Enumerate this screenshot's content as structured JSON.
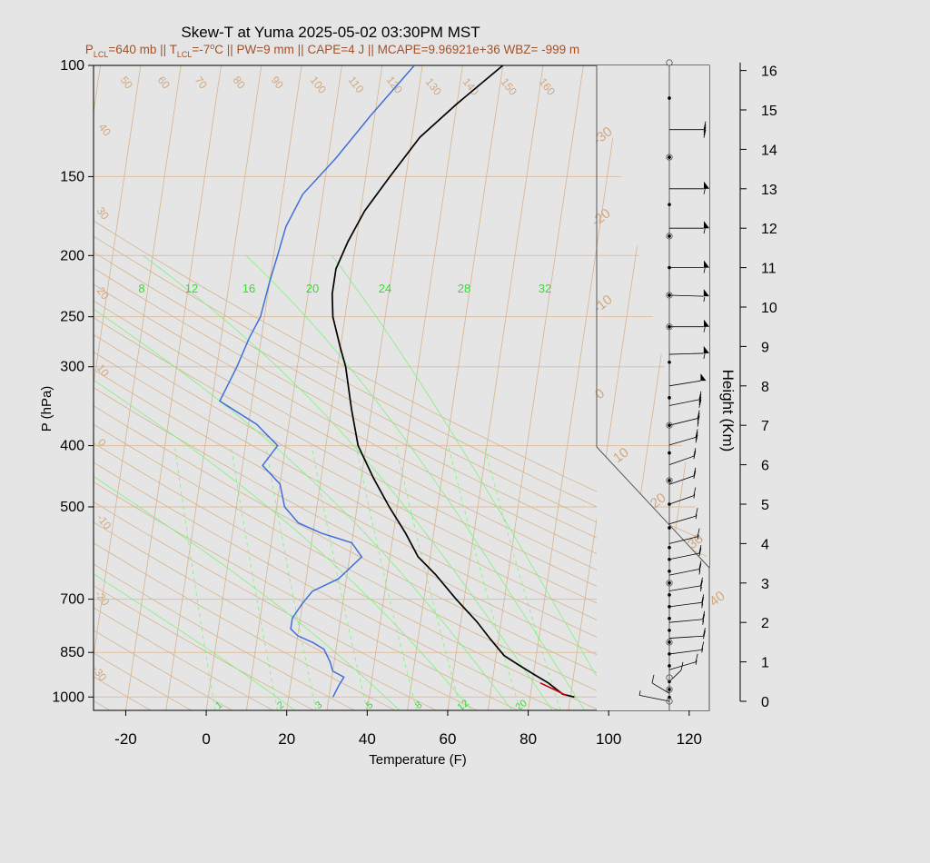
{
  "chart_data": {
    "type": "skew-t",
    "title": "Skew-T at Yuma 2025-05-02 03:30PM MST",
    "subtitle_parts": [
      "P",
      "LCL",
      "=640 mb || T",
      "LCL",
      "=-7",
      "o",
      "C || PW=9 mm || CAPE=4 J || MCAPE=9.96921e+36 WBZ= -999 m"
    ],
    "xlabel": "Temperature (F)",
    "ylabel": "P (hPa)",
    "y2label": "Height (Km)",
    "xlim": [
      -28,
      125
    ],
    "plim": [
      100,
      1050
    ],
    "x_ticks": [
      -20,
      0,
      20,
      40,
      60,
      80,
      100,
      120
    ],
    "p_ticks": [
      100,
      150,
      200,
      250,
      300,
      400,
      500,
      700,
      850,
      1000
    ],
    "height_ticks": [
      0,
      1,
      2,
      3,
      4,
      5,
      6,
      7,
      8,
      9,
      10,
      11,
      12,
      13,
      14,
      15,
      16
    ],
    "isotherm_labels": [
      "-30",
      "-20",
      "-10",
      "0",
      "10",
      "20",
      "30",
      "40",
      "50",
      "60",
      "70",
      "80",
      "90",
      "100",
      "110",
      "120",
      "130",
      "140",
      "150",
      "160"
    ],
    "mixing_ratio_labels_upper": [
      "8",
      "12",
      "16",
      "20",
      "24",
      "28",
      "32"
    ],
    "mixing_ratio_labels_lower": [
      "1",
      "2",
      "3",
      "5",
      "8",
      "12",
      "20"
    ],
    "series": [
      {
        "name": "temperature",
        "color": "#000000",
        "points": [
          [
            91,
            1000
          ],
          [
            88,
            990
          ],
          [
            84,
            950
          ],
          [
            80,
            920
          ],
          [
            76,
            890
          ],
          [
            72,
            860
          ],
          [
            68,
            810
          ],
          [
            64,
            760
          ],
          [
            58,
            700
          ],
          [
            52,
            640
          ],
          [
            47,
            600
          ],
          [
            43,
            550
          ],
          [
            38,
            500
          ],
          [
            33,
            450
          ],
          [
            28,
            400
          ],
          [
            25,
            350
          ],
          [
            22,
            300
          ],
          [
            20,
            280
          ],
          [
            17,
            250
          ],
          [
            16,
            230
          ],
          [
            16,
            210
          ],
          [
            18,
            190
          ],
          [
            21,
            170
          ],
          [
            26,
            150
          ],
          [
            32,
            130
          ],
          [
            40,
            115
          ],
          [
            50,
            100
          ]
        ]
      },
      {
        "name": "dewpoint",
        "color": "#3f6fd8",
        "points": [
          [
            31,
            1000
          ],
          [
            32,
            960
          ],
          [
            33,
            930
          ],
          [
            30,
            910
          ],
          [
            29,
            880
          ],
          [
            27,
            840
          ],
          [
            24,
            820
          ],
          [
            20,
            800
          ],
          [
            18,
            780
          ],
          [
            18,
            750
          ],
          [
            20,
            710
          ],
          [
            22,
            680
          ],
          [
            28,
            650
          ],
          [
            33,
            600
          ],
          [
            30,
            570
          ],
          [
            22,
            550
          ],
          [
            16,
            530
          ],
          [
            12,
            500
          ],
          [
            10,
            460
          ],
          [
            5,
            430
          ],
          [
            8,
            400
          ],
          [
            2,
            370
          ],
          [
            -8,
            340
          ],
          [
            -5,
            300
          ],
          [
            -3,
            270
          ],
          [
            -1,
            250
          ],
          [
            0,
            220
          ],
          [
            1,
            200
          ],
          [
            2,
            180
          ],
          [
            5,
            160
          ],
          [
            12,
            140
          ],
          [
            19,
            120
          ],
          [
            28,
            100
          ]
        ]
      },
      {
        "name": "parcel",
        "color": "#cc0000",
        "points": [
          [
            89,
            995
          ],
          [
            86,
            975
          ],
          [
            82,
            950
          ]
        ]
      }
    ],
    "wind_barbs": [
      {
        "km": 0.0,
        "dir": 120,
        "spd": 8
      },
      {
        "km": 0.2,
        "dir": 150,
        "spd": 10
      },
      {
        "km": 0.5,
        "dir": 200,
        "spd": 12
      },
      {
        "km": 0.8,
        "dir": 230,
        "spd": 15
      },
      {
        "km": 1.2,
        "dir": 250,
        "spd": 18
      },
      {
        "km": 1.6,
        "dir": 260,
        "spd": 22
      },
      {
        "km": 2.0,
        "dir": 255,
        "spd": 25
      },
      {
        "km": 2.4,
        "dir": 250,
        "spd": 25
      },
      {
        "km": 2.8,
        "dir": 245,
        "spd": 25
      },
      {
        "km": 3.2,
        "dir": 240,
        "spd": 25
      },
      {
        "km": 3.6,
        "dir": 240,
        "spd": 20
      },
      {
        "km": 4.0,
        "dir": 235,
        "spd": 15
      },
      {
        "km": 4.5,
        "dir": 230,
        "spd": 15
      },
      {
        "km": 5.0,
        "dir": 225,
        "spd": 15
      },
      {
        "km": 5.5,
        "dir": 225,
        "spd": 20
      },
      {
        "km": 6.0,
        "dir": 225,
        "spd": 20
      },
      {
        "km": 6.5,
        "dir": 230,
        "spd": 30
      },
      {
        "km": 7.0,
        "dir": 235,
        "spd": 35
      },
      {
        "km": 7.5,
        "dir": 240,
        "spd": 40
      },
      {
        "km": 8.0,
        "dir": 245,
        "spd": 50
      },
      {
        "km": 8.8,
        "dir": 265,
        "spd": 60
      },
      {
        "km": 9.5,
        "dir": 270,
        "spd": 60
      },
      {
        "km": 10.3,
        "dir": 275,
        "spd": 55
      },
      {
        "km": 11.0,
        "dir": 270,
        "spd": 60
      },
      {
        "km": 12.0,
        "dir": 270,
        "spd": 60
      },
      {
        "km": 13.0,
        "dir": 270,
        "spd": 60
      },
      {
        "km": 14.5,
        "dir": 270,
        "spd": 40
      }
    ],
    "height_dots_km": [
      0.1,
      0.3,
      0.5,
      0.9,
      1.2,
      1.5,
      1.8,
      2.1,
      2.4,
      2.7,
      3.0,
      3.3,
      3.6,
      3.9,
      4.4,
      5.0,
      5.6,
      6.3,
      7.0,
      7.7,
      8.6,
      9.5,
      10.3,
      11.0,
      11.8,
      12.6,
      13.8,
      15.3
    ],
    "height_circles_km": [
      0.0,
      0.3,
      0.6,
      1.5,
      3.0,
      5.6,
      7.0,
      9.5,
      10.3,
      11.8,
      13.8,
      16.2
    ]
  }
}
